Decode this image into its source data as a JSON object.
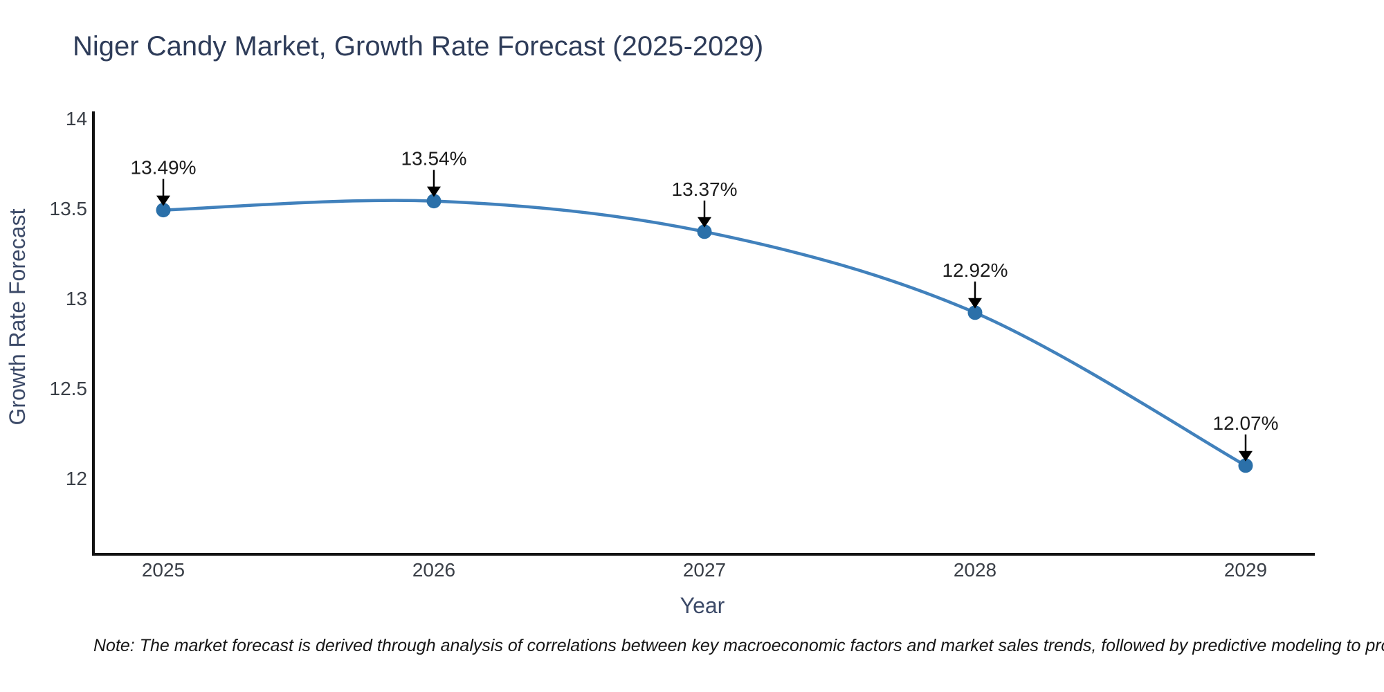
{
  "title": "Niger Candy Market, Growth Rate Forecast (2025-2029)",
  "note": "Note: The market forecast is derived through analysis of correlations between key macroeconomic factors and market sales trends, followed by predictive modeling to project future sales",
  "chart_data": {
    "type": "line",
    "title": "Niger Candy Market, Growth Rate Forecast (2025-2029)",
    "xlabel": "Year",
    "ylabel": "Growth Rate Forecast",
    "x": [
      2025,
      2026,
      2027,
      2028,
      2029
    ],
    "series": [
      {
        "name": "Growth Rate Forecast",
        "values": [
          13.49,
          13.54,
          13.37,
          12.92,
          12.07
        ]
      }
    ],
    "point_labels": [
      "13.49%",
      "13.54%",
      "13.37%",
      "12.92%",
      "12.07%"
    ],
    "y_ticks": [
      14,
      13.5,
      13,
      12.5,
      12
    ],
    "ylim": [
      11.58,
      14.04
    ],
    "xlim": [
      2024.74,
      2029.26
    ],
    "grid": false,
    "legend": false,
    "marker": "circle",
    "annotation_arrows": "down"
  },
  "colors": {
    "line": "#4181bc",
    "marker": "#2b70a9",
    "axis": "#121212",
    "tick_label": "#3a3f47",
    "title": "#2e3c59",
    "axis_label": "#3c4a68",
    "annotation": "#1c1c1c",
    "arrow": "#000000",
    "note": "#161616",
    "background": "#ffffff"
  }
}
